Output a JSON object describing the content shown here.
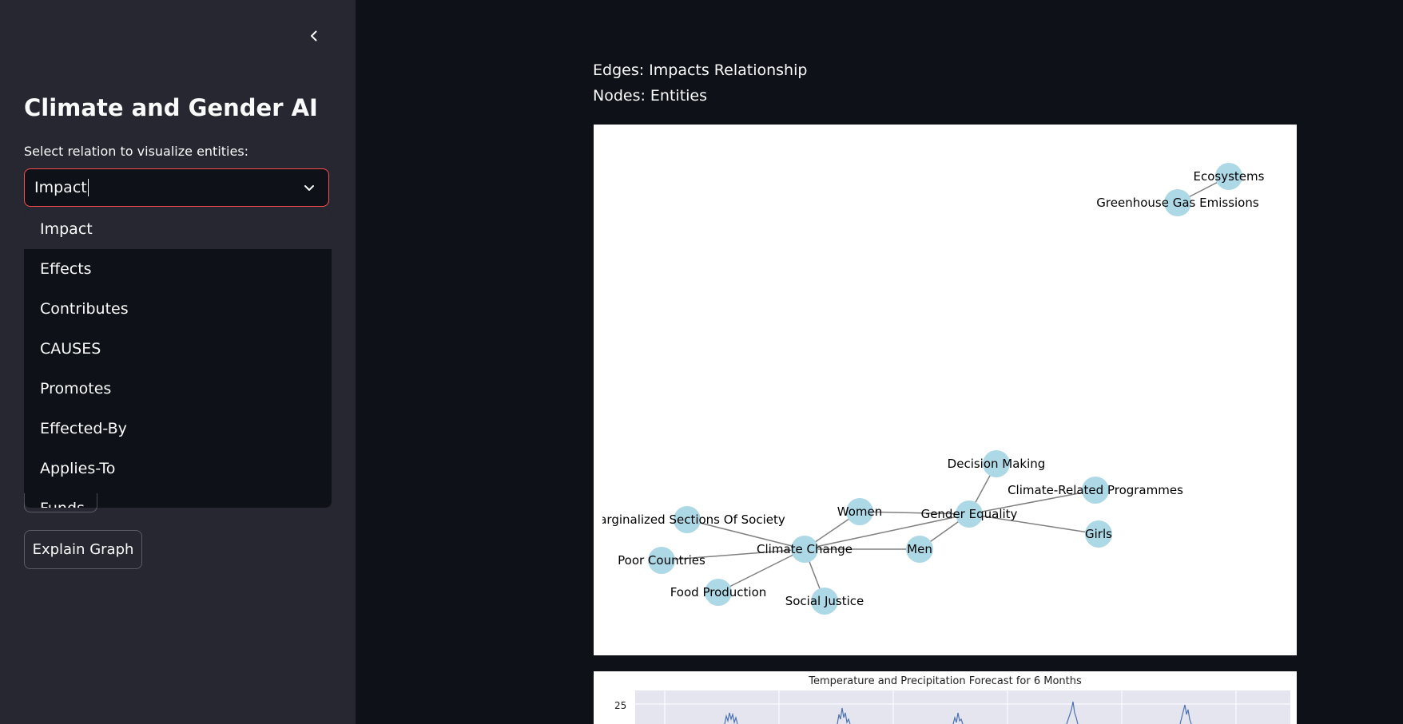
{
  "sidebar": {
    "collapse_icon": "chevron-left-icon",
    "title": "Climate and Gender AI",
    "select_label": "Select relation to visualize entities:",
    "select_value": "Impact",
    "options": [
      "Impact",
      "Effects",
      "Contributes",
      "CAUSES",
      "Promotes",
      "Effected-By",
      "Applies-To",
      "Funds"
    ],
    "explain_button": "Explain Graph",
    "accent_color": "#ff4b4b"
  },
  "main": {
    "edges_line": "Edges: Impacts Relationship",
    "nodes_line": "Nodes: Entities"
  },
  "graph": {
    "node_color": "#add8e6",
    "edge_color": "#808080",
    "nodes": [
      {
        "id": "ecosystems",
        "label": "Ecosystems"
      },
      {
        "id": "ghg",
        "label": "Greenhouse Gas Emissions"
      },
      {
        "id": "decision",
        "label": "Decision Making"
      },
      {
        "id": "crp",
        "label": "Climate-Related Programmes"
      },
      {
        "id": "gender",
        "label": "Gender Equality"
      },
      {
        "id": "women",
        "label": "Women"
      },
      {
        "id": "girls",
        "label": "Girls"
      },
      {
        "id": "marginalized",
        "label": "Marginalized Sections Of Society"
      },
      {
        "id": "climate",
        "label": "Climate Change"
      },
      {
        "id": "men",
        "label": "Men"
      },
      {
        "id": "poor",
        "label": "Poor Countries"
      },
      {
        "id": "food",
        "label": "Food Production"
      },
      {
        "id": "justice",
        "label": "Social Justice"
      }
    ],
    "edges": [
      [
        "ecosystems",
        "ghg"
      ],
      [
        "decision",
        "gender"
      ],
      [
        "gender",
        "crp"
      ],
      [
        "gender",
        "girls"
      ],
      [
        "women",
        "gender"
      ],
      [
        "women",
        "climate"
      ],
      [
        "climate",
        "gender"
      ],
      [
        "men",
        "gender"
      ],
      [
        "climate",
        "men"
      ],
      [
        "climate",
        "marginalized"
      ],
      [
        "climate",
        "poor"
      ],
      [
        "climate",
        "food"
      ],
      [
        "climate",
        "justice"
      ]
    ]
  },
  "forecast": {
    "title": "Temperature and Precipitation Forecast for 6 Months",
    "y_tick": "25"
  }
}
